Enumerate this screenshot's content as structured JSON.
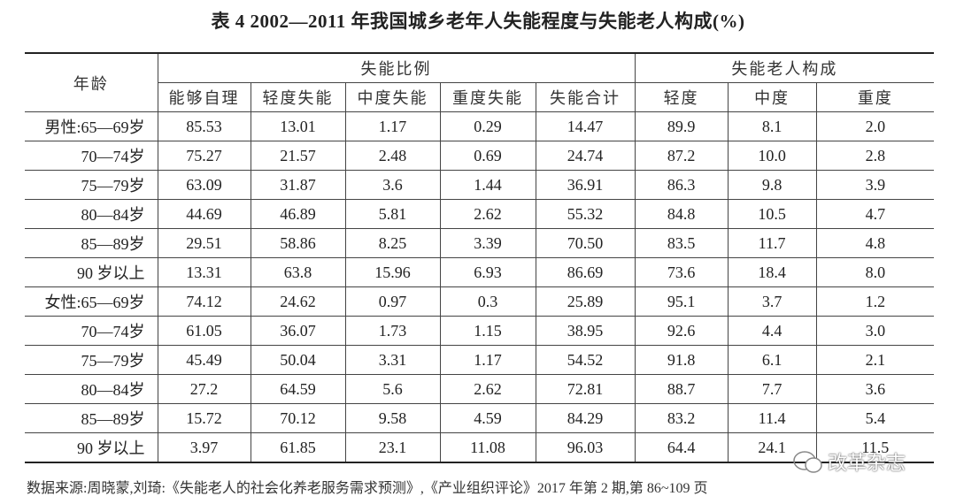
{
  "title": "表 4  2002—2011 年我国城乡老年人失能程度与失能老人构成(%)",
  "table": {
    "age_header": "年龄",
    "groups": [
      "失能比例",
      "失能老人构成"
    ],
    "columns": [
      "能够自理",
      "轻度失能",
      "中度失能",
      "重度失能",
      "失能合计",
      "轻度",
      "中度",
      "重度"
    ],
    "rows": [
      [
        "男性:65—69岁",
        "85.53",
        "13.01",
        "1.17",
        "0.29",
        "14.47",
        "89.9",
        "8.1",
        "2.0"
      ],
      [
        "70—74岁",
        "75.27",
        "21.57",
        "2.48",
        "0.69",
        "24.74",
        "87.2",
        "10.0",
        "2.8"
      ],
      [
        "75—79岁",
        "63.09",
        "31.87",
        "3.6",
        "1.44",
        "36.91",
        "86.3",
        "9.8",
        "3.9"
      ],
      [
        "80—84岁",
        "44.69",
        "46.89",
        "5.81",
        "2.62",
        "55.32",
        "84.8",
        "10.5",
        "4.7"
      ],
      [
        "85—89岁",
        "29.51",
        "58.86",
        "8.25",
        "3.39",
        "70.50",
        "83.5",
        "11.7",
        "4.8"
      ],
      [
        "90 岁以上",
        "13.31",
        "63.8",
        "15.96",
        "6.93",
        "86.69",
        "73.6",
        "18.4",
        "8.0"
      ],
      [
        "女性:65—69岁",
        "74.12",
        "24.62",
        "0.97",
        "0.3",
        "25.89",
        "95.1",
        "3.7",
        "1.2"
      ],
      [
        "70—74岁",
        "61.05",
        "36.07",
        "1.73",
        "1.15",
        "38.95",
        "92.6",
        "4.4",
        "3.0"
      ],
      [
        "75—79岁",
        "45.49",
        "50.04",
        "3.31",
        "1.17",
        "54.52",
        "91.8",
        "6.1",
        "2.1"
      ],
      [
        "80—84岁",
        "27.2",
        "64.59",
        "5.6",
        "2.62",
        "72.81",
        "88.7",
        "7.7",
        "3.6"
      ],
      [
        "85—89岁",
        "15.72",
        "70.12",
        "9.58",
        "4.59",
        "84.29",
        "83.2",
        "11.4",
        "5.4"
      ],
      [
        "90 岁以上",
        "3.97",
        "61.85",
        "23.1",
        "11.08",
        "96.03",
        "64.4",
        "24.1",
        "11.5"
      ]
    ]
  },
  "source": "数据来源:周晓蒙,刘琦:《失能老人的社会化养老服务需求预测》,《产业组织评论》2017 年第 2 期,第 86~109 页",
  "watermark": "改革杂志"
}
